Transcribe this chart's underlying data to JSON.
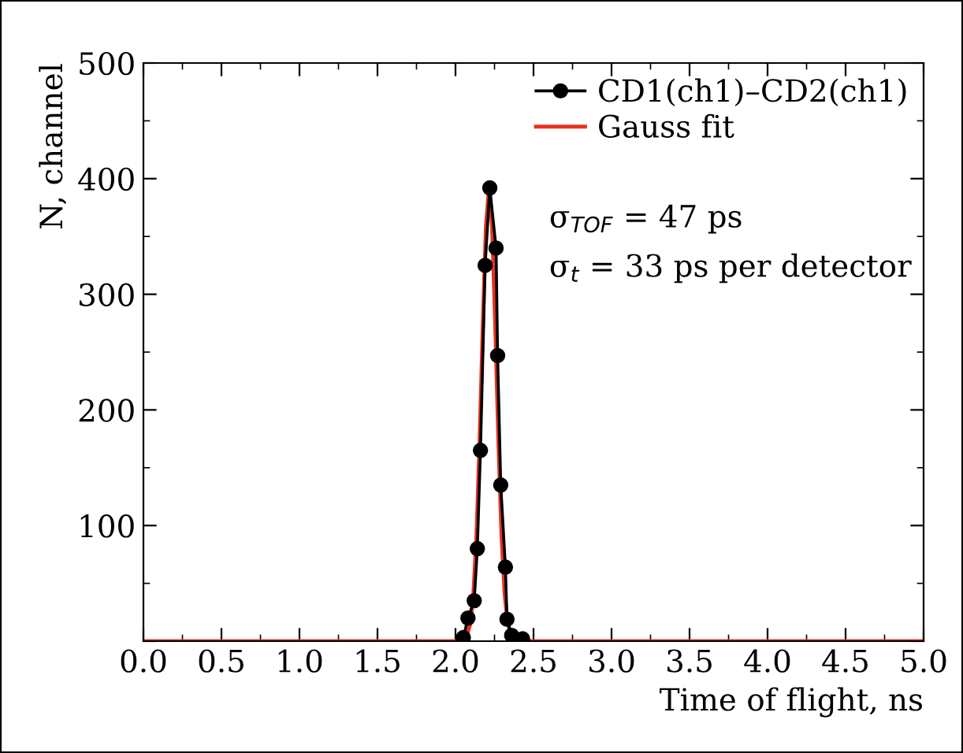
{
  "chart_data": {
    "type": "line",
    "xlabel": "Time of flight, ns",
    "ylabel": "N, channel",
    "xlim": [
      0,
      5
    ],
    "ylim": [
      0,
      500
    ],
    "xticks": [
      {
        "value": 0,
        "label": "0.0"
      },
      {
        "value": 0.5,
        "label": "0.5"
      },
      {
        "value": 1,
        "label": "1.0"
      },
      {
        "value": 1.5,
        "label": "1.5"
      },
      {
        "value": 2,
        "label": "2.0"
      },
      {
        "value": 2.5,
        "label": "2.5"
      },
      {
        "value": 3,
        "label": "3.0"
      },
      {
        "value": 3.5,
        "label": "3.5"
      },
      {
        "value": 4,
        "label": "4.0"
      },
      {
        "value": 4.5,
        "label": "4.5"
      },
      {
        "value": 5,
        "label": "5.0"
      }
    ],
    "yticks": [
      {
        "value": 0,
        "label": null
      },
      100,
      200,
      300,
      400,
      500
    ],
    "series": [
      {
        "name": "CD1(ch1)–CD2(ch1)",
        "color": "#000000",
        "marker": "circle",
        "x": [
          2.05,
          2.08,
          2.12,
          2.14,
          2.16,
          2.19,
          2.22,
          2.26,
          2.27,
          2.29,
          2.32,
          2.33,
          2.36,
          2.43
        ],
        "values": [
          3,
          20,
          35,
          80,
          165,
          325,
          392,
          340,
          247,
          135,
          64,
          19,
          5,
          2
        ]
      },
      {
        "name": "Gauss fit",
        "color": "#e8321e",
        "marker": "none",
        "x": [
          0,
          2.0,
          2.065,
          2.095,
          2.115,
          2.135,
          2.155,
          2.175,
          2.195,
          2.215,
          2.235,
          2.255,
          2.275,
          2.295,
          2.315,
          2.335,
          2.365,
          2.43,
          5
        ],
        "values": [
          0,
          0,
          2,
          15,
          41,
          92,
          174,
          273,
          358,
          392,
          358,
          273,
          174,
          92,
          41,
          15,
          2,
          0,
          0
        ]
      }
    ],
    "legend": "top right",
    "annotations": [
      "σ$_{TOF}$ = 47 ps",
      "σ$_{t}$ = 33 ps per detector"
    ]
  }
}
